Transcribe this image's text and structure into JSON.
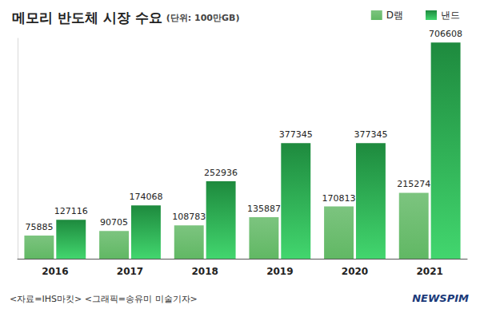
{
  "chart_data": {
    "type": "bar",
    "title": "메모리 반도체 시장 수요",
    "subtitle": "(단위: 100만GB)",
    "categories": [
      "2016",
      "2017",
      "2018",
      "2019",
      "2020",
      "2021"
    ],
    "series": [
      {
        "name": "D램",
        "color": "#7cc47f",
        "values": [
          75885,
          90705,
          108783,
          135887,
          170813,
          215274
        ]
      },
      {
        "name": "낸드",
        "color": "#1e8a3e",
        "values": [
          127116,
          174068,
          252936,
          377345,
          377345,
          706608
        ]
      }
    ],
    "ylim": [
      0,
      720000
    ],
    "grid": false,
    "legend": "top-right",
    "data_labels": true,
    "tick_labels": "x",
    "annotations": [
      "<자료=IHS마킷>",
      "<그래픽=송유미 미술기자>",
      "NEWSPIM"
    ]
  }
}
